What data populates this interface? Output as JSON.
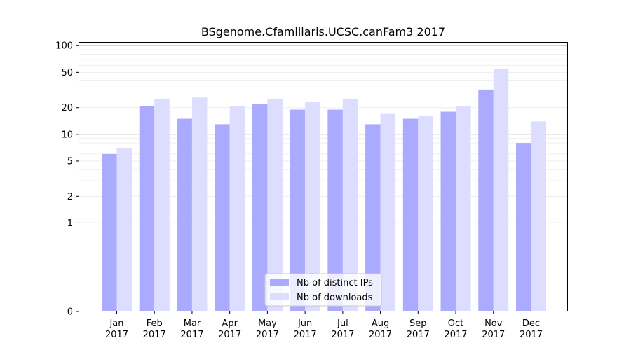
{
  "chart_data": {
    "type": "bar",
    "title": "BSgenome.Cfamiliaris.UCSC.canFam3 2017",
    "xlabel": "",
    "ylabel": "",
    "y_scale": "symlog",
    "ylim": [
      0,
      110
    ],
    "y_ticks": [
      "0",
      "1",
      "2",
      "5",
      "10",
      "20",
      "50",
      "100"
    ],
    "categories": [
      [
        "Jan",
        "2017"
      ],
      [
        "Feb",
        "2017"
      ],
      [
        "Mar",
        "2017"
      ],
      [
        "Apr",
        "2017"
      ],
      [
        "May",
        "2017"
      ],
      [
        "Jun",
        "2017"
      ],
      [
        "Jul",
        "2017"
      ],
      [
        "Aug",
        "2017"
      ],
      [
        "Sep",
        "2017"
      ],
      [
        "Oct",
        "2017"
      ],
      [
        "Nov",
        "2017"
      ],
      [
        "Dec",
        "2017"
      ]
    ],
    "series": [
      {
        "name": "Nb of distinct IPs",
        "color": "#aaaaff",
        "values": [
          6,
          21,
          15,
          13,
          22,
          19,
          19,
          13,
          15,
          18,
          32,
          8
        ]
      },
      {
        "name": "Nb of downloads",
        "color": "#ddddff",
        "values": [
          7,
          25,
          26,
          21,
          25,
          23,
          25,
          17,
          16,
          21,
          55,
          14
        ]
      }
    ],
    "grid": true,
    "legend_position": "bottom-center"
  }
}
